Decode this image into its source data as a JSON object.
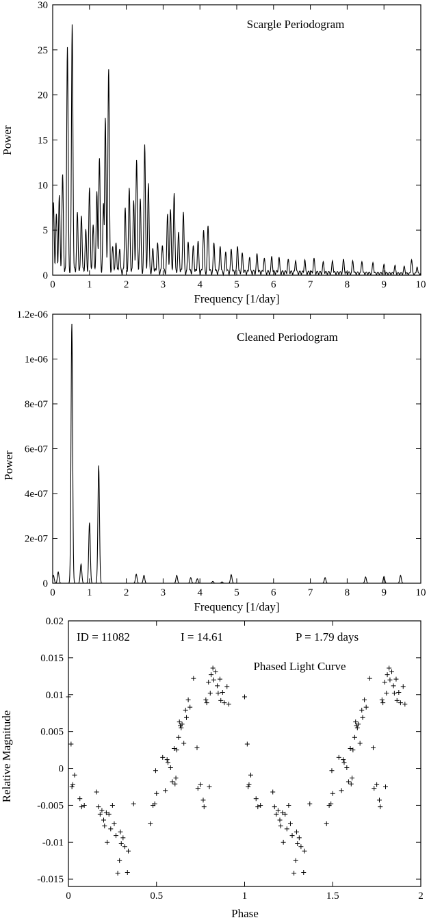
{
  "chart_data": [
    {
      "type": "line",
      "title": "Scargle Periodogram",
      "xlabel": "Frequency [1/day]",
      "ylabel": "Power",
      "xlim": [
        0,
        10
      ],
      "ylim": [
        0,
        30
      ],
      "xticks": [
        "0",
        "1",
        "2",
        "3",
        "4",
        "5",
        "6",
        "7",
        "8",
        "9",
        "10"
      ],
      "yticks": [
        "0",
        "5",
        "10",
        "15",
        "20",
        "25",
        "30"
      ],
      "peaks": [
        {
          "x": 0.02,
          "y": 8.1
        },
        {
          "x": 0.1,
          "y": 6.8
        },
        {
          "x": 0.18,
          "y": 8.9
        },
        {
          "x": 0.27,
          "y": 11.2
        },
        {
          "x": 0.4,
          "y": 25.3
        },
        {
          "x": 0.53,
          "y": 27.9
        },
        {
          "x": 0.67,
          "y": 7.0
        },
        {
          "x": 0.78,
          "y": 6.6
        },
        {
          "x": 0.9,
          "y": 5.1
        },
        {
          "x": 1.0,
          "y": 9.7
        },
        {
          "x": 1.1,
          "y": 5.6
        },
        {
          "x": 1.2,
          "y": 9.3
        },
        {
          "x": 1.27,
          "y": 13.0
        },
        {
          "x": 1.38,
          "y": 8.0
        },
        {
          "x": 1.43,
          "y": 17.5
        },
        {
          "x": 1.52,
          "y": 22.9
        },
        {
          "x": 1.63,
          "y": 3.2
        },
        {
          "x": 1.72,
          "y": 3.6
        },
        {
          "x": 1.82,
          "y": 2.9
        },
        {
          "x": 1.97,
          "y": 7.5
        },
        {
          "x": 2.08,
          "y": 9.7
        },
        {
          "x": 2.2,
          "y": 8.3
        },
        {
          "x": 2.28,
          "y": 12.8
        },
        {
          "x": 2.38,
          "y": 8.5
        },
        {
          "x": 2.5,
          "y": 14.5
        },
        {
          "x": 2.6,
          "y": 10.2
        },
        {
          "x": 2.72,
          "y": 3.0
        },
        {
          "x": 2.85,
          "y": 3.6
        },
        {
          "x": 2.98,
          "y": 3.3
        },
        {
          "x": 3.12,
          "y": 6.8
        },
        {
          "x": 3.2,
          "y": 7.3
        },
        {
          "x": 3.3,
          "y": 9.1
        },
        {
          "x": 3.42,
          "y": 4.8
        },
        {
          "x": 3.55,
          "y": 7.0
        },
        {
          "x": 3.68,
          "y": 3.7
        },
        {
          "x": 3.82,
          "y": 3.3
        },
        {
          "x": 3.95,
          "y": 3.8
        },
        {
          "x": 4.1,
          "y": 5.0
        },
        {
          "x": 4.22,
          "y": 5.5
        },
        {
          "x": 4.38,
          "y": 3.6
        },
        {
          "x": 4.55,
          "y": 3.2
        },
        {
          "x": 4.7,
          "y": 2.6
        },
        {
          "x": 4.85,
          "y": 2.9
        },
        {
          "x": 5.02,
          "y": 3.2
        },
        {
          "x": 5.15,
          "y": 2.5
        },
        {
          "x": 5.35,
          "y": 2.0
        },
        {
          "x": 5.55,
          "y": 2.4
        },
        {
          "x": 5.75,
          "y": 1.9
        },
        {
          "x": 5.95,
          "y": 2.1
        },
        {
          "x": 6.15,
          "y": 2.0
        },
        {
          "x": 6.4,
          "y": 1.8
        },
        {
          "x": 6.6,
          "y": 1.6
        },
        {
          "x": 6.85,
          "y": 1.7
        },
        {
          "x": 7.1,
          "y": 1.9
        },
        {
          "x": 7.35,
          "y": 1.5
        },
        {
          "x": 7.6,
          "y": 1.6
        },
        {
          "x": 7.9,
          "y": 1.8
        },
        {
          "x": 8.15,
          "y": 1.6
        },
        {
          "x": 8.4,
          "y": 1.5
        },
        {
          "x": 8.7,
          "y": 1.4
        },
        {
          "x": 9.0,
          "y": 1.2
        },
        {
          "x": 9.3,
          "y": 1.1
        },
        {
          "x": 9.55,
          "y": 1.0
        },
        {
          "x": 9.75,
          "y": 1.7
        },
        {
          "x": 9.9,
          "y": 0.9
        }
      ]
    },
    {
      "type": "line",
      "title": "Cleaned Periodogram",
      "xlabel": "Frequency [1/day]",
      "ylabel": "Power",
      "xlim": [
        0,
        10
      ],
      "ylim": [
        0,
        1.2e-06
      ],
      "xticks": [
        "0",
        "1",
        "2",
        "3",
        "4",
        "5",
        "6",
        "7",
        "8",
        "9",
        "10"
      ],
      "yticks": [
        "0",
        "2e-07",
        "4e-07",
        "6e-07",
        "8e-07",
        "1e-06",
        "1.2e-06"
      ],
      "peaks": [
        {
          "x": 0.02,
          "y": 3.5e-08
        },
        {
          "x": 0.15,
          "y": 5e-08
        },
        {
          "x": 0.52,
          "y": 1.16e-06
        },
        {
          "x": 0.77,
          "y": 8.5e-08
        },
        {
          "x": 1.0,
          "y": 2.7e-07
        },
        {
          "x": 1.25,
          "y": 5.25e-07
        },
        {
          "x": 2.27,
          "y": 4e-08
        },
        {
          "x": 2.48,
          "y": 3.5e-08
        },
        {
          "x": 3.37,
          "y": 3.5e-08
        },
        {
          "x": 3.75,
          "y": 2.5e-08
        },
        {
          "x": 3.93,
          "y": 2e-08
        },
        {
          "x": 4.35,
          "y": 8e-09
        },
        {
          "x": 4.6,
          "y": 6e-09
        },
        {
          "x": 4.85,
          "y": 3.8e-08
        },
        {
          "x": 7.4,
          "y": 2.5e-08
        },
        {
          "x": 8.5,
          "y": 2.8e-08
        },
        {
          "x": 9.0,
          "y": 3e-08
        },
        {
          "x": 9.45,
          "y": 3.5e-08
        }
      ]
    },
    {
      "type": "scatter",
      "title": "Phased Light Curve",
      "xlabel": "Phase",
      "ylabel": "Relative Magnitude",
      "xlim": [
        0,
        2
      ],
      "ylim": [
        -0.016,
        0.02
      ],
      "xticks": [
        "0",
        "0.5",
        "1",
        "1.5",
        "2"
      ],
      "yticks": [
        "-0.015",
        "-0.01",
        "-0.005",
        "0",
        "0.005",
        "0.01",
        "0.015",
        "0.02"
      ],
      "annotations": {
        "id": "ID = 11082",
        "imag": "I = 14.61",
        "period": "P = 1.79 days"
      },
      "repeat_offset": 1,
      "points": [
        [
          0.0,
          0.0097
        ],
        [
          0.015,
          0.0033
        ],
        [
          0.02,
          -0.0025
        ],
        [
          0.025,
          -0.0022
        ],
        [
          0.035,
          -0.0009
        ],
        [
          0.065,
          -0.0041
        ],
        [
          0.075,
          -0.0052
        ],
        [
          0.09,
          -0.005
        ],
        [
          0.16,
          -0.0032
        ],
        [
          0.17,
          -0.0052
        ],
        [
          0.18,
          -0.0062
        ],
        [
          0.19,
          -0.0057
        ],
        [
          0.2,
          -0.007
        ],
        [
          0.205,
          -0.0078
        ],
        [
          0.215,
          -0.006
        ],
        [
          0.22,
          -0.01
        ],
        [
          0.23,
          -0.0062
        ],
        [
          0.24,
          -0.0082
        ],
        [
          0.25,
          -0.005
        ],
        [
          0.26,
          -0.0075
        ],
        [
          0.27,
          -0.0091
        ],
        [
          0.28,
          -0.0142
        ],
        [
          0.29,
          -0.0125
        ],
        [
          0.295,
          -0.0086
        ],
        [
          0.3,
          -0.0102
        ],
        [
          0.31,
          -0.0094
        ],
        [
          0.32,
          -0.0106
        ],
        [
          0.335,
          -0.0141
        ],
        [
          0.34,
          -0.0112
        ],
        [
          0.37,
          -0.0048
        ],
        [
          0.465,
          -0.0075
        ],
        [
          0.48,
          -0.005
        ],
        [
          0.49,
          -0.0048
        ],
        [
          0.495,
          -0.0003
        ],
        [
          0.5,
          -0.0034
        ],
        [
          0.535,
          0.0015
        ],
        [
          0.55,
          -0.003
        ],
        [
          0.56,
          0.0012
        ],
        [
          0.565,
          0.0008
        ],
        [
          0.58,
          0.0001
        ],
        [
          0.59,
          -0.0018
        ],
        [
          0.6,
          0.0027
        ],
        [
          0.605,
          -0.0021
        ],
        [
          0.61,
          -0.0013
        ],
        [
          0.615,
          0.0025
        ],
        [
          0.625,
          0.0042
        ],
        [
          0.63,
          0.0063
        ],
        [
          0.635,
          0.0058
        ],
        [
          0.64,
          0.0055
        ],
        [
          0.645,
          0.006
        ],
        [
          0.655,
          0.0034
        ],
        [
          0.665,
          0.0079
        ],
        [
          0.67,
          0.0069
        ],
        [
          0.68,
          0.0093
        ],
        [
          0.69,
          0.0083
        ],
        [
          0.71,
          0.0122
        ],
        [
          0.73,
          0.0028
        ],
        [
          0.735,
          -0.0027
        ],
        [
          0.75,
          -0.0022
        ],
        [
          0.765,
          -0.0043
        ],
        [
          0.77,
          -0.0052
        ],
        [
          0.78,
          0.0093
        ],
        [
          0.785,
          0.0089
        ],
        [
          0.795,
          0.0117
        ],
        [
          0.8,
          -0.0025
        ],
        [
          0.805,
          0.0102
        ],
        [
          0.81,
          0.0127
        ],
        [
          0.82,
          0.0136
        ],
        [
          0.825,
          0.012
        ],
        [
          0.835,
          0.0131
        ],
        [
          0.845,
          0.0112
        ],
        [
          0.85,
          0.0102
        ],
        [
          0.86,
          0.0121
        ],
        [
          0.865,
          0.0092
        ],
        [
          0.875,
          0.0103
        ],
        [
          0.885,
          0.0089
        ],
        [
          0.9,
          0.0111
        ],
        [
          0.91,
          0.0087
        ]
      ]
    }
  ]
}
